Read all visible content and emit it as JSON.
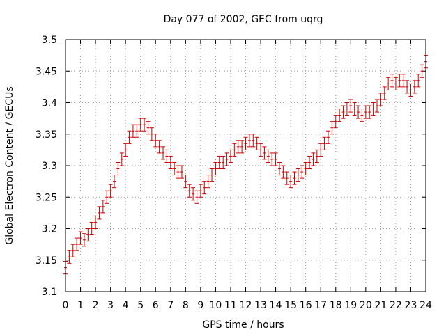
{
  "chart_data": {
    "type": "scatter",
    "title": "Day 077 of 2002, GEC from uqrg",
    "xlabel": "GPS time / hours",
    "ylabel": "Global Electron Content / GECUs",
    "xlim": [
      0,
      24
    ],
    "ylim": [
      3.1,
      3.5
    ],
    "x_ticks": [
      "0",
      "1",
      "2",
      "3",
      "4",
      "5",
      "6",
      "7",
      "8",
      "9",
      "10",
      "11",
      "12",
      "13",
      "14",
      "15",
      "16",
      "17",
      "18",
      "19",
      "20",
      "21",
      "22",
      "23",
      "24"
    ],
    "y_ticks": [
      "3.1",
      "3.15",
      "3.2",
      "3.25",
      "3.3",
      "3.35",
      "3.4",
      "3.45",
      "3.5"
    ],
    "grid": true,
    "series": [
      {
        "color": "#cc0000",
        "error": 0.01,
        "x": [
          0,
          0.25,
          0.5,
          0.75,
          1,
          1.25,
          1.5,
          1.75,
          2,
          2.25,
          2.5,
          2.75,
          3,
          3.25,
          3.5,
          3.75,
          4,
          4.25,
          4.5,
          4.75,
          5,
          5.25,
          5.5,
          5.75,
          6,
          6.25,
          6.5,
          6.75,
          7,
          7.25,
          7.5,
          7.75,
          8,
          8.25,
          8.5,
          8.75,
          9,
          9.25,
          9.5,
          9.75,
          10,
          10.25,
          10.5,
          10.75,
          11,
          11.25,
          11.5,
          11.75,
          12,
          12.25,
          12.5,
          12.75,
          13,
          13.25,
          13.5,
          13.75,
          14,
          14.25,
          14.5,
          14.75,
          15,
          15.25,
          15.5,
          15.75,
          16,
          16.25,
          16.5,
          16.75,
          17,
          17.25,
          17.5,
          17.75,
          18,
          18.25,
          18.5,
          18.75,
          19,
          19.25,
          19.5,
          19.75,
          20,
          20.25,
          20.5,
          20.75,
          21,
          21.25,
          21.5,
          21.75,
          22,
          22.25,
          22.5,
          22.75,
          23,
          23.25,
          23.5,
          23.75,
          24
        ],
        "y": [
          3.138,
          3.155,
          3.165,
          3.175,
          3.185,
          3.182,
          3.19,
          3.2,
          3.21,
          3.225,
          3.235,
          3.25,
          3.26,
          3.275,
          3.295,
          3.31,
          3.325,
          3.345,
          3.355,
          3.355,
          3.365,
          3.365,
          3.36,
          3.35,
          3.34,
          3.33,
          3.32,
          3.315,
          3.305,
          3.295,
          3.29,
          3.29,
          3.275,
          3.26,
          3.255,
          3.25,
          3.26,
          3.265,
          3.275,
          3.285,
          3.295,
          3.305,
          3.305,
          3.31,
          3.315,
          3.325,
          3.33,
          3.33,
          3.335,
          3.34,
          3.34,
          3.335,
          3.325,
          3.32,
          3.315,
          3.31,
          3.31,
          3.295,
          3.29,
          3.28,
          3.275,
          3.28,
          3.285,
          3.29,
          3.295,
          3.305,
          3.31,
          3.315,
          3.325,
          3.335,
          3.345,
          3.36,
          3.37,
          3.38,
          3.385,
          3.39,
          3.395,
          3.39,
          3.385,
          3.38,
          3.385,
          3.385,
          3.39,
          3.395,
          3.405,
          3.415,
          3.43,
          3.435,
          3.43,
          3.435,
          3.435,
          3.425,
          3.42,
          3.425,
          3.435,
          3.45,
          3.465
        ]
      }
    ]
  }
}
